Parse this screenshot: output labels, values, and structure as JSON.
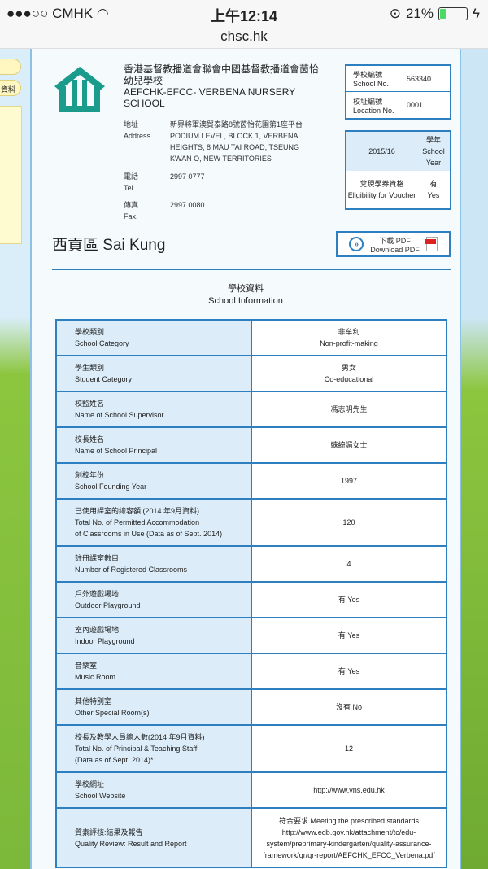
{
  "status": {
    "carrier": "●●●○○ CMHK",
    "time": "上午12:14",
    "battery": "21%",
    "battery_level": 0.21,
    "url": "chsc.hk"
  },
  "side": {
    "pill": "資料"
  },
  "school": {
    "name_zh": "香港基督教播道會聯會中國基督教播道會茵怡幼兒學校",
    "name_en": "AEFCHK-EFCC- VERBENA NURSERY SCHOOL",
    "address_lbl_zh": "地址",
    "address_lbl_en": "Address",
    "address_zh": "新界將軍澳貿泰路8號茵怡花園第1座平台",
    "address_en": "PODIUM LEVEL, BLOCK 1, VERBENA HEIGHTS, 8 MAU TAI ROAD, TSEUNG KWAN O, NEW TERRITORIES",
    "tel_lbl_zh": "電話",
    "tel_lbl_en": "Tel.",
    "tel": "2997 0777",
    "fax_lbl_zh": "傳真",
    "fax_lbl_en": "Fax.",
    "fax": "2997 0080"
  },
  "ids": {
    "school_no_lbl_zh": "學校編號",
    "school_no_lbl_en": "School No.",
    "school_no": "563340",
    "loc_lbl_zh": "校址編號",
    "loc_lbl_en": "Location No.",
    "loc": "0001"
  },
  "year": {
    "value": "2015/16",
    "lbl_zh": "學年",
    "lbl_en": "School Year",
    "voucher_lbl_zh": "兌現學券資格",
    "voucher_lbl_en": "Eligibility for Voucher",
    "voucher_zh": "有",
    "voucher_en": "Yes"
  },
  "district": "西貢區 Sai Kung",
  "pdf": {
    "zh": "下載 PDF",
    "en": "Download PDF"
  },
  "section": {
    "zh": "學校資料",
    "en": "School Information"
  },
  "rows": [
    {
      "k": "學校類別\nSchool Category",
      "v": "非牟利\nNon-profit-making"
    },
    {
      "k": "學生類別\nStudent Category",
      "v": "男女\nCo-educational"
    },
    {
      "k": "校監姓名\nName of School Supervisor",
      "v": "馮志明先生"
    },
    {
      "k": "校長姓名\nName of School Principal",
      "v": "蘇綺湄女士"
    },
    {
      "k": "創校年份\nSchool Founding Year",
      "v": "1997"
    },
    {
      "k": "已使用課室的總容額 (2014 年9月資料)\nTotal No. of Permitted Accommodation\nof Classrooms in Use (Data as of Sept. 2014)",
      "v": "120"
    },
    {
      "k": "註冊課室數目\nNumber of Registered Classrooms",
      "v": "4"
    },
    {
      "k": "戶外遊戲場地\nOutdoor Playground",
      "v": "有 Yes"
    },
    {
      "k": "室內遊戲場地\nIndoor Playground",
      "v": "有 Yes"
    },
    {
      "k": "音樂室\nMusic Room",
      "v": "有 Yes"
    },
    {
      "k": "其他特別室\nOther Special Room(s)",
      "v": "沒有 No"
    },
    {
      "k": "校長及教學人員總人數(2014 年9月資料)\nTotal No. of Principal & Teaching Staff\n(Data as of Sept. 2014)*",
      "v": "12"
    },
    {
      "k": "學校網址\nSchool Website",
      "v": "http://www.vns.edu.hk"
    },
    {
      "k": "質素評核:結果及報告\nQuality Review: Result and Report",
      "v": "符合要求 Meeting the prescribed standards\nhttp://www.edb.gov.hk/attachment/tc/edu-\nsystem/preprimary-kindergarten/quality-assurance-\nframework/qr/qr-report/AEFCHK_EFCC_Verbena.pdf"
    }
  ]
}
